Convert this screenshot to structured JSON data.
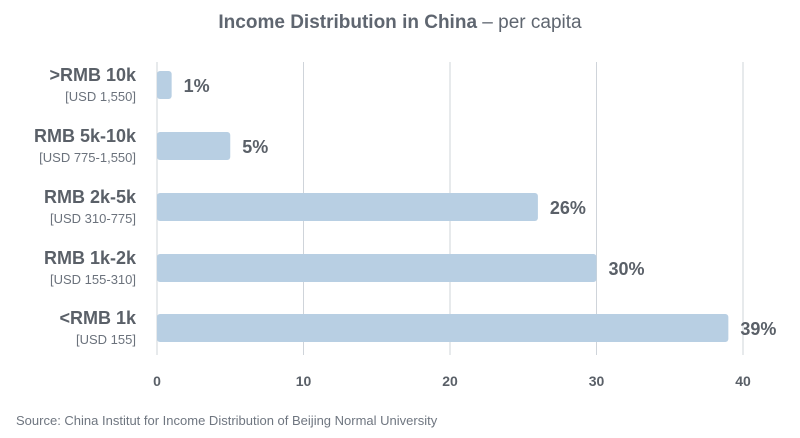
{
  "header": {
    "title": "Income Distribution in China",
    "subtitle": " – per capita"
  },
  "footer": {
    "source": "Source: China Institut for Income Distribution of Beijing Normal University"
  },
  "colors": {
    "bar": "#b8cfe3",
    "text": "#5a6068",
    "grid": "#cfd4da"
  },
  "chart_data": {
    "type": "bar",
    "orientation": "horizontal",
    "categories": [
      ">RMB 10k",
      "RMB 5k-10k",
      "RMB 2k-5k",
      "RMB 1k-2k",
      "<RMB 1k"
    ],
    "category_sublabels": [
      "[USD 1,550]",
      "[USD 775-1,550]",
      "[USD 310-775]",
      "[USD 155-310]",
      "[USD 155]"
    ],
    "values": [
      1,
      5,
      26,
      30,
      39
    ],
    "value_labels": [
      "1%",
      "5%",
      "26%",
      "30%",
      "39%"
    ],
    "xlim": [
      0,
      40
    ],
    "xticks": [
      "0",
      "10",
      "20",
      "30",
      "40"
    ],
    "grid": true
  }
}
